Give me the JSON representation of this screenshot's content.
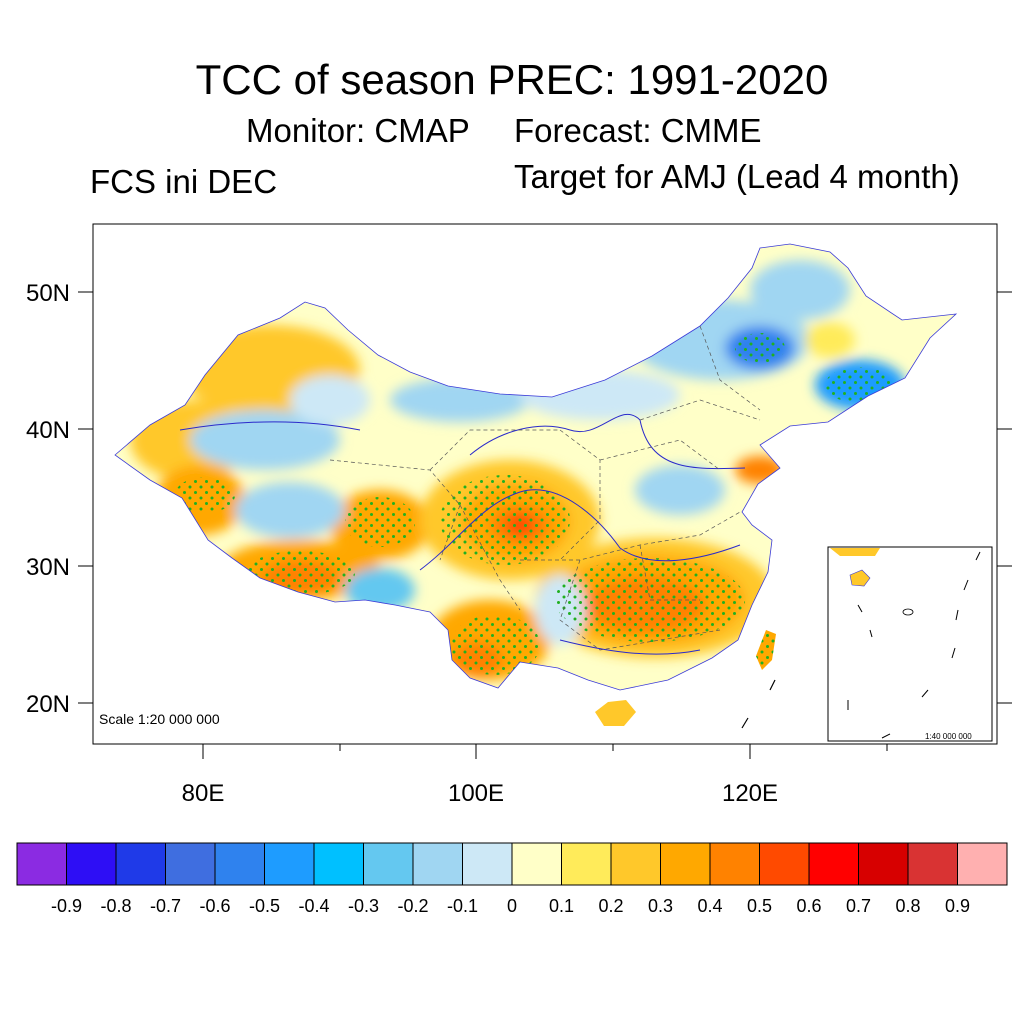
{
  "title": {
    "main": "TCC of season PREC: 1991-2020",
    "monitor": "Monitor: CMAP",
    "forecast": "Forecast: CMME",
    "init": "FCS ini DEC",
    "target": "Target for AMJ (Lead 4 month)"
  },
  "map": {
    "lat_labels": [
      "50N",
      "40N",
      "30N",
      "20N"
    ],
    "lon_labels": [
      "80E",
      "100E",
      "120E"
    ],
    "scale_label": "Scale 1:20 000 000",
    "inset_scale_label": "1:40 000 000",
    "lon_range": [
      72,
      138
    ],
    "lat_range": [
      17,
      55
    ]
  },
  "colorbar": {
    "colors": [
      "#8b2be2",
      "#2e0ef5",
      "#1f3ae8",
      "#3f6ee0",
      "#2f82ee",
      "#1e9cff",
      "#00c0ff",
      "#64c8f0",
      "#a0d6f2",
      "#cde8f6",
      "#ffffc8",
      "#ffeb5a",
      "#ffc82a",
      "#ffa800",
      "#ff8200",
      "#ff4a00",
      "#ff0000",
      "#d70000",
      "#d93333",
      "#ffb0b0"
    ],
    "labels": [
      "-0.9",
      "-0.8",
      "-0.7",
      "-0.6",
      "-0.5",
      "-0.4",
      "-0.3",
      "-0.2",
      "-0.1",
      "0",
      "0.1",
      "0.2",
      "0.3",
      "0.4",
      "0.5",
      "0.6",
      "0.7",
      "0.8",
      "0.9"
    ]
  }
}
